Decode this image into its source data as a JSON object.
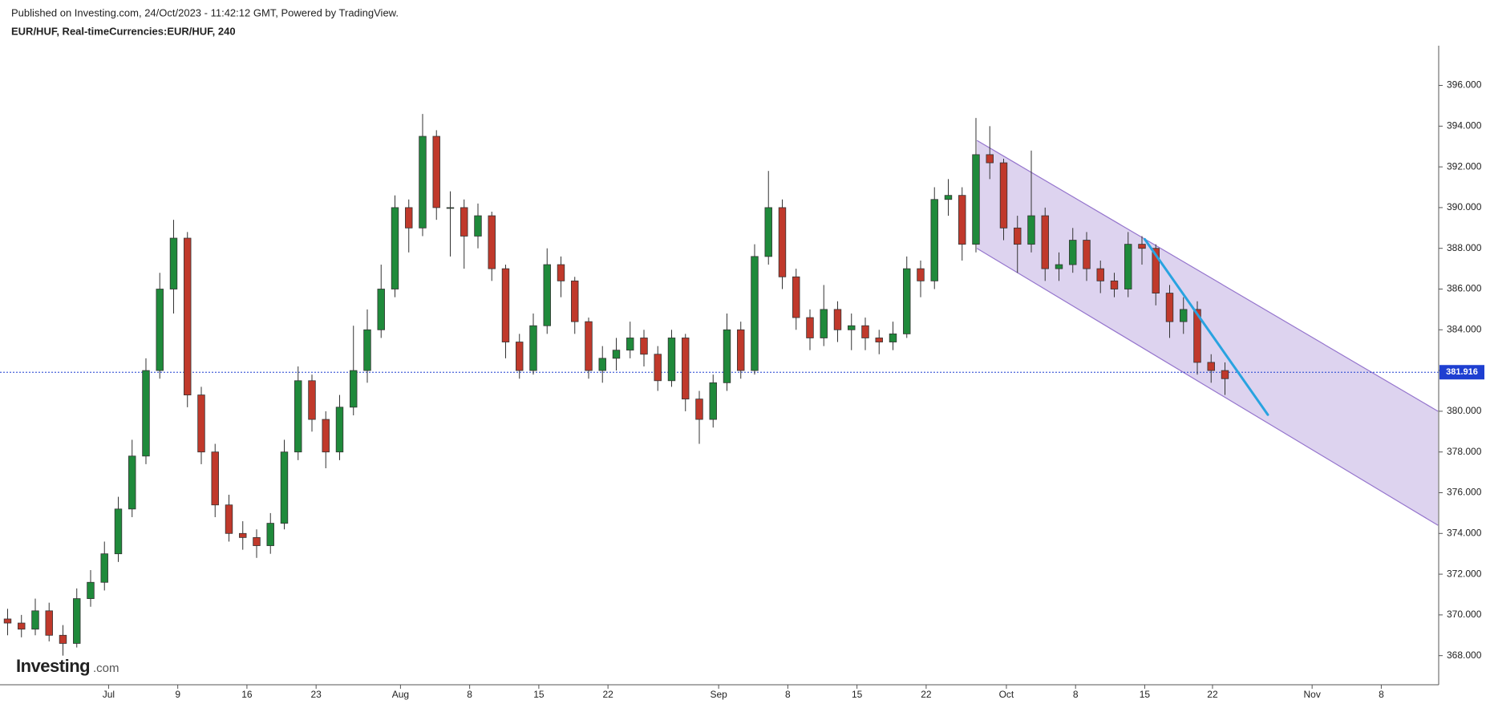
{
  "chart_data": {
    "type": "candlestick",
    "published": "Published on Investing.com, 24/Oct/2023 - 11:42:12 GMT, Powered by TradingView.",
    "title": "EUR/HUF, Real-timeCurrencies:EUR/HUF, 240",
    "logo": {
      "brand": "Investing",
      "suffix": ".com"
    },
    "up_color": "#1f8a3b",
    "down_color": "#c0392b",
    "xlim": [
      -0.55,
      103.45
    ],
    "xticks": [
      {
        "value": 7.3,
        "label": "Jul"
      },
      {
        "value": 12.3,
        "label": "9"
      },
      {
        "value": 17.3,
        "label": "16"
      },
      {
        "value": 22.3,
        "label": "23"
      },
      {
        "value": 28.4,
        "label": "Aug"
      },
      {
        "value": 33.4,
        "label": "8"
      },
      {
        "value": 38.4,
        "label": "15"
      },
      {
        "value": 43.4,
        "label": "22"
      },
      {
        "value": 51.4,
        "label": "Sep"
      },
      {
        "value": 56.4,
        "label": "8"
      },
      {
        "value": 61.4,
        "label": "15"
      },
      {
        "value": 66.4,
        "label": "22"
      },
      {
        "value": 72.2,
        "label": "Oct"
      },
      {
        "value": 77.2,
        "label": "8"
      },
      {
        "value": 82.2,
        "label": "15"
      },
      {
        "value": 87.1,
        "label": "22"
      },
      {
        "value": 94.3,
        "label": "Nov"
      },
      {
        "value": 99.3,
        "label": "8"
      }
    ],
    "ylim": [
      366.57,
      397.95
    ],
    "yticks": [
      {
        "value": 368,
        "label": "368.000"
      },
      {
        "value": 370,
        "label": "370.000"
      },
      {
        "value": 372,
        "label": "372.000"
      },
      {
        "value": 374,
        "label": "374.000"
      },
      {
        "value": 376,
        "label": "376.000"
      },
      {
        "value": 378,
        "label": "378.000"
      },
      {
        "value": 380,
        "label": "380.000"
      },
      {
        "value": 382,
        "label": "382.000"
      },
      {
        "value": 384,
        "label": "384.000"
      },
      {
        "value": 386,
        "label": "386.000"
      },
      {
        "value": 388,
        "label": "388.000"
      },
      {
        "value": 390,
        "label": "390.000"
      },
      {
        "value": 392,
        "label": "392.000"
      },
      {
        "value": 394,
        "label": "394.000"
      },
      {
        "value": 396,
        "label": "396.000"
      }
    ],
    "x": [
      0,
      1,
      2,
      3,
      4,
      5,
      6,
      7,
      8,
      9,
      10,
      11,
      12,
      13,
      14,
      15,
      16,
      17,
      18,
      19,
      20,
      21,
      22,
      23,
      24,
      25,
      26,
      27,
      28,
      29,
      30,
      31,
      32,
      33,
      34,
      35,
      36,
      37,
      38,
      39,
      40,
      41,
      42,
      43,
      44,
      45,
      46,
      47,
      48,
      49,
      50,
      51,
      52,
      53,
      54,
      55,
      56,
      57,
      58,
      59,
      60,
      61,
      62,
      63,
      64,
      65,
      66,
      67,
      68,
      69,
      70,
      71,
      72,
      73,
      74,
      75,
      76,
      77,
      78,
      79,
      80,
      81,
      82,
      83,
      84,
      85,
      86,
      87,
      88
    ],
    "open": [
      369.8,
      369.6,
      369.3,
      370.2,
      369.0,
      368.6,
      370.8,
      371.6,
      373.0,
      375.2,
      377.8,
      382.0,
      386.0,
      388.5,
      380.8,
      378.0,
      375.4,
      374.0,
      373.8,
      373.4,
      374.5,
      378.0,
      381.5,
      379.6,
      378.0,
      380.2,
      382.0,
      384.0,
      386.0,
      390.0,
      389.0,
      393.5,
      390.0,
      390.0,
      388.6,
      389.6,
      387.0,
      383.4,
      382.0,
      384.2,
      387.2,
      386.4,
      384.4,
      382.0,
      382.6,
      383.0,
      383.6,
      382.8,
      381.5,
      383.6,
      380.6,
      379.6,
      381.4,
      384.0,
      382.0,
      387.6,
      390.0,
      386.6,
      384.6,
      383.6,
      385.0,
      384.0,
      384.2,
      383.6,
      383.4,
      383.8,
      387.0,
      386.4,
      390.4,
      390.6,
      388.2,
      392.6,
      392.2,
      389.0,
      388.2,
      389.6,
      387.0,
      387.2,
      388.4,
      387.0,
      386.4,
      386.0,
      388.2,
      388.0,
      385.8,
      384.4,
      385.0,
      382.4,
      382.0
    ],
    "high": [
      370.3,
      370.0,
      370.8,
      370.6,
      369.5,
      371.3,
      372.2,
      373.6,
      375.8,
      378.6,
      382.6,
      386.8,
      389.4,
      388.8,
      381.2,
      378.4,
      375.9,
      374.6,
      374.2,
      375.0,
      378.6,
      382.2,
      381.8,
      380.0,
      380.8,
      384.2,
      385.0,
      387.2,
      390.6,
      390.4,
      394.6,
      393.8,
      390.8,
      390.4,
      390.2,
      389.8,
      387.2,
      383.8,
      384.8,
      388.0,
      387.6,
      386.6,
      384.6,
      383.2,
      383.6,
      384.4,
      384.0,
      383.2,
      384.0,
      383.8,
      381.0,
      381.8,
      384.8,
      384.4,
      388.2,
      391.8,
      390.4,
      387.0,
      385.0,
      386.2,
      385.4,
      384.8,
      384.6,
      384.0,
      384.4,
      387.6,
      387.4,
      391.0,
      391.4,
      391.0,
      394.4,
      394.0,
      392.4,
      389.6,
      392.8,
      390.0,
      387.8,
      389.0,
      388.8,
      387.4,
      386.8,
      388.8,
      388.6,
      388.2,
      386.2,
      385.6,
      385.4,
      382.8,
      382.4
    ],
    "low": [
      369.0,
      368.9,
      369.0,
      368.7,
      368.0,
      368.4,
      370.4,
      371.2,
      372.6,
      374.8,
      377.4,
      381.6,
      384.8,
      380.2,
      377.4,
      374.8,
      373.6,
      373.2,
      372.8,
      373.0,
      374.2,
      377.6,
      379.0,
      377.2,
      377.6,
      379.8,
      381.4,
      383.6,
      385.6,
      387.8,
      388.6,
      389.4,
      387.6,
      387.0,
      388.0,
      386.4,
      382.6,
      381.6,
      381.8,
      383.8,
      385.6,
      383.8,
      381.6,
      381.4,
      382.0,
      382.6,
      382.2,
      381.0,
      381.2,
      380.0,
      378.4,
      379.2,
      381.0,
      381.6,
      381.8,
      387.2,
      386.0,
      384.0,
      383.0,
      383.2,
      383.4,
      383.0,
      383.0,
      382.8,
      383.0,
      383.6,
      385.6,
      386.0,
      389.6,
      387.4,
      387.8,
      391.4,
      388.4,
      386.8,
      387.8,
      386.4,
      386.4,
      386.8,
      386.4,
      385.8,
      385.6,
      385.6,
      387.2,
      385.2,
      383.6,
      383.8,
      381.8,
      381.4,
      380.8
    ],
    "close": [
      369.6,
      369.3,
      370.2,
      369.0,
      368.6,
      370.8,
      371.6,
      373.0,
      375.2,
      377.8,
      382.0,
      386.0,
      388.5,
      380.8,
      378.0,
      375.4,
      374.0,
      373.8,
      373.4,
      374.5,
      378.0,
      381.5,
      379.6,
      378.0,
      380.2,
      382.0,
      384.0,
      386.0,
      390.0,
      389.0,
      393.5,
      390.0,
      390.0,
      388.6,
      389.6,
      387.0,
      383.4,
      382.0,
      384.2,
      387.2,
      386.4,
      384.4,
      382.0,
      382.6,
      383.0,
      383.6,
      382.8,
      381.5,
      383.6,
      380.6,
      379.6,
      381.4,
      384.0,
      382.0,
      387.6,
      390.0,
      386.6,
      384.6,
      383.6,
      385.0,
      384.0,
      384.2,
      383.6,
      383.4,
      383.8,
      387.0,
      386.4,
      390.4,
      390.6,
      388.2,
      392.6,
      392.2,
      389.0,
      388.2,
      389.6,
      387.0,
      387.2,
      388.4,
      387.0,
      386.4,
      386.0,
      388.2,
      388.0,
      385.8,
      384.4,
      385.0,
      382.4,
      382.0,
      381.6
    ],
    "last_price": {
      "value": 381.916,
      "label": "381.916",
      "color": "#1e3fd1"
    },
    "channel": {
      "color": "#9575cd",
      "upper": [
        [
          70.07,
          393.3
        ],
        [
          103.4,
          380.0
        ]
      ],
      "lower": [
        [
          70.07,
          388.0
        ],
        [
          103.4,
          374.4
        ]
      ]
    },
    "trendline": {
      "color": "#29a3e0",
      "points": [
        [
          82.2,
          388.45
        ],
        [
          91.1,
          379.83
        ]
      ]
    }
  }
}
